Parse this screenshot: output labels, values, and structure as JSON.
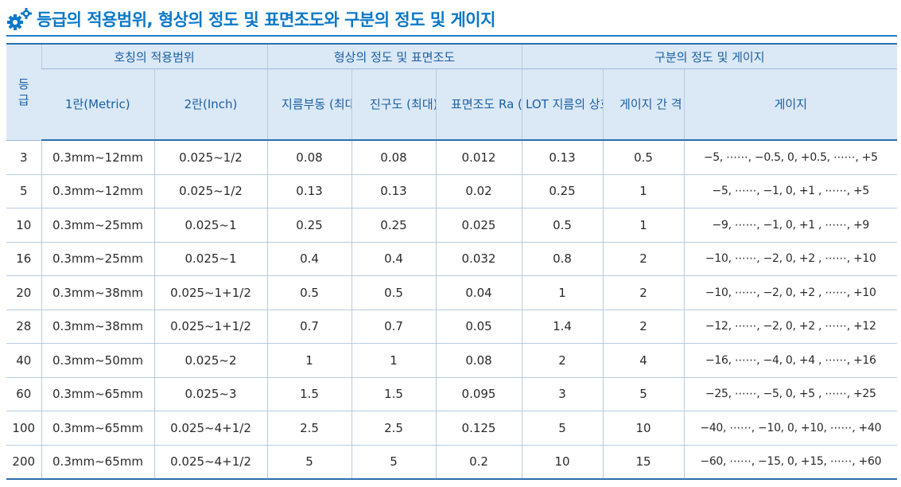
{
  "title": "등급의 적용범위, 형상의 정도 및 표면조도와 구분의 정도 및 게이지",
  "group_headers": {
    "grade": "등급",
    "range": "호칭의 적용범위",
    "shape": "형상의 정도 및 표면조도",
    "division": "구분의 정도 및 게이지"
  },
  "columns": [
    "1란(Metric)",
    "2란(Inch)",
    "지름부동 (최대)",
    "진구도 (최대)",
    "표면조도 Ra (최대)",
    "LOT 지름의 상호차 (최대)",
    "게이지 간 격",
    "게이지"
  ],
  "rows": [
    [
      "3",
      "0.3mm~12mm",
      "0.025~1/2",
      "0.08",
      "0.08",
      "0.012",
      "0.13",
      "0.5",
      "−5, ⋯⋯, −0.5, 0, +0.5, ⋯⋯, +5"
    ],
    [
      "5",
      "0.3mm~12mm",
      "0.025~1/2",
      "0.13",
      "0.13",
      "0.02",
      "0.25",
      "1",
      "−5, ⋯⋯, −1, 0, +1 , ⋯⋯, +5"
    ],
    [
      "10",
      "0.3mm~25mm",
      "0.025~1",
      "0.25",
      "0.25",
      "0.025",
      "0.5",
      "1",
      "−9, ⋯⋯, −1, 0, +1 , ⋯⋯, +9"
    ],
    [
      "16",
      "0.3mm~25mm",
      "0.025~1",
      "0.4",
      "0.4",
      "0.032",
      "0.8",
      "2",
      "−10, ⋯⋯, −2, 0, +2 , ⋯⋯, +10"
    ],
    [
      "20",
      "0.3mm~38mm",
      "0.025~1+1/2",
      "0.5",
      "0.5",
      "0.04",
      "1",
      "2",
      "−10, ⋯⋯, −2, 0, +2 , ⋯⋯, +10"
    ],
    [
      "28",
      "0.3mm~38mm",
      "0.025~1+1/2",
      "0.7",
      "0.7",
      "0.05",
      "1.4",
      "2",
      "−12, ⋯⋯, −2, 0, +2 , ⋯⋯, +12"
    ],
    [
      "40",
      "0.3mm~50mm",
      "0.025~2",
      "1",
      "1",
      "0.08",
      "2",
      "4",
      "−16, ⋯⋯, −4, 0, +4 , ⋯⋯, +16"
    ],
    [
      "60",
      "0.3mm~65mm",
      "0.025~3",
      "1.5",
      "1.5",
      "0.095",
      "3",
      "5",
      "−25, ⋯⋯, −5, 0, +5 , ⋯⋯, +25"
    ],
    [
      "100",
      "0.3mm~65mm",
      "0.025~4+1/2",
      "2.5",
      "2.5",
      "0.125",
      "5",
      "10",
      "−40, ⋯⋯, −10, 0, +10, ⋯⋯, +40"
    ],
    [
      "200",
      "0.3mm~65mm",
      "0.025~4+1/2",
      "5",
      "5",
      "0.2",
      "10",
      "15",
      "−60, ⋯⋯, −15, 0, +15, ⋯⋯, +60"
    ]
  ],
  "colors": {
    "accent": "#0a78c8",
    "header_bg": "#dbe8f6",
    "header_text": "#1a5fa3"
  },
  "icons": {
    "title_icon": "gears-icon"
  }
}
